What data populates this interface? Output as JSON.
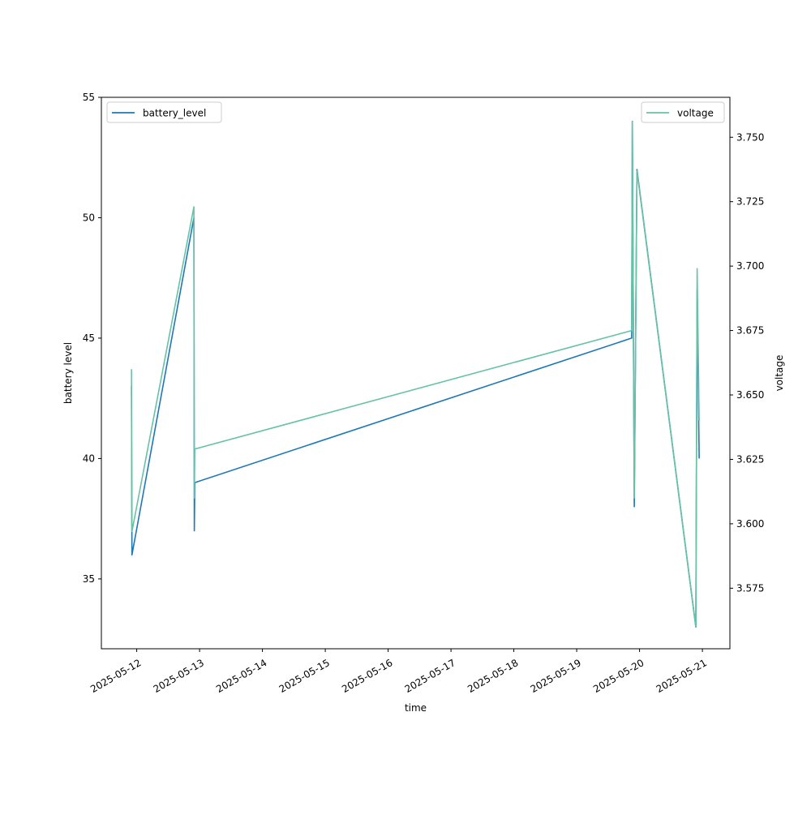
{
  "chart_data": {
    "type": "line",
    "title": "",
    "xlabel": "time",
    "ylabel": "battery level",
    "y2label": "voltage",
    "x_tick_labels": [
      "2025-05-12",
      "2025-05-13",
      "2025-05-14",
      "2025-05-15",
      "2025-05-16",
      "2025-05-17",
      "2025-05-18",
      "2025-05-19",
      "2025-05-20",
      "2025-05-21"
    ],
    "x_ticks": [
      "2025-05-12T00:00",
      "2025-05-13T00:00",
      "2025-05-14T00:00",
      "2025-05-15T00:00",
      "2025-05-16T00:00",
      "2025-05-17T00:00",
      "2025-05-18T00:00",
      "2025-05-19T00:00",
      "2025-05-20T00:00",
      "2025-05-21T00:00"
    ],
    "xlim": [
      "2025-05-11T10:30",
      "2025-05-21T10:30"
    ],
    "ylim": [
      32.1,
      55
    ],
    "y_ticks": [
      35,
      40,
      45,
      50,
      55
    ],
    "y2lim": [
      3.5515,
      3.7655
    ],
    "y2_ticks": [
      3.575,
      3.6,
      3.625,
      3.65,
      3.675,
      3.7,
      3.725,
      3.75
    ],
    "y2_tick_labels": [
      "3.575",
      "3.600",
      "3.625",
      "3.650",
      "3.675",
      "3.700",
      "3.725",
      "3.750"
    ],
    "grid": false,
    "legend_left": "upper-left",
    "legend_right": "upper-right",
    "series": [
      {
        "name": "battery_level",
        "axis": "left",
        "color": "#1f77b4",
        "points": [
          [
            "2025-05-11T22:00",
            43
          ],
          [
            "2025-05-11T22:10",
            36
          ],
          [
            "2025-05-12T21:50",
            50
          ],
          [
            "2025-05-12T22:00",
            37
          ],
          [
            "2025-05-12T22:10",
            39
          ],
          [
            "2025-05-19T21:00",
            45
          ],
          [
            "2025-05-19T21:15",
            54
          ],
          [
            "2025-05-19T22:00",
            38
          ],
          [
            "2025-05-19T23:00",
            52
          ],
          [
            "2025-05-20T21:30",
            33
          ],
          [
            "2025-05-20T22:00",
            47
          ],
          [
            "2025-05-20T22:45",
            40
          ]
        ]
      },
      {
        "name": "voltage",
        "axis": "right",
        "color": "#66c2a5",
        "points": [
          [
            "2025-05-11T22:00",
            3.66
          ],
          [
            "2025-05-11T22:10",
            3.597
          ],
          [
            "2025-05-12T21:50",
            3.723
          ],
          [
            "2025-05-12T22:00",
            3.61
          ],
          [
            "2025-05-12T22:10",
            3.629
          ],
          [
            "2025-05-19T21:00",
            3.675
          ],
          [
            "2025-05-19T21:15",
            3.756
          ],
          [
            "2025-05-19T22:00",
            3.61
          ],
          [
            "2025-05-19T23:00",
            3.737
          ],
          [
            "2025-05-20T21:30",
            3.56
          ],
          [
            "2025-05-20T22:00",
            3.699
          ],
          [
            "2025-05-20T22:45",
            3.64
          ]
        ]
      }
    ]
  }
}
